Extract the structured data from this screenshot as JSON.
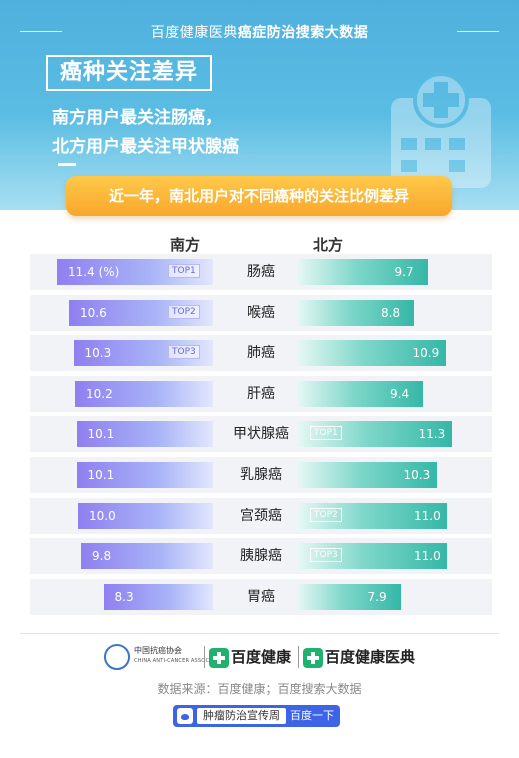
{
  "header": {
    "top_prefix": "百度健康医典",
    "top_bold": "癌症防治搜索大数据",
    "title": "癌种关注差异",
    "subtitle1": "南方用户最关注肠癌，",
    "subtitle2": "北方用户最关注甲状腺癌",
    "banner": "近一年，南北用户对不同癌种的关注比例差异"
  },
  "chart_data": {
    "type": "bar",
    "title": "近一年，南北用户对不同癌种的关注比例差异",
    "unit": "%",
    "categories": [
      "肠癌",
      "喉癌",
      "肺癌",
      "肝癌",
      "甲状腺癌",
      "乳腺癌",
      "宫颈癌",
      "胰腺癌",
      "胃癌"
    ],
    "series": [
      {
        "name": "南方",
        "color": "#8f7ff0",
        "values": [
          11.4,
          10.6,
          10.3,
          10.2,
          10.1,
          10.1,
          10.0,
          9.8,
          8.3
        ],
        "labels": [
          "11.4 (%)",
          "10.6",
          "10.3",
          "10.2",
          "10.1",
          "10.1",
          "10.0",
          "9.8",
          "8.3"
        ],
        "tops": [
          "TOP1",
          "TOP2",
          "TOP3",
          "",
          "",
          "",
          "",
          "",
          ""
        ]
      },
      {
        "name": "北方",
        "color": "#35b7a7",
        "values": [
          9.7,
          8.8,
          10.9,
          9.4,
          11.3,
          10.3,
          11.0,
          11.0,
          7.9
        ],
        "labels": [
          "9.7",
          "8.8",
          "10.9",
          "9.4",
          "11.3",
          "10.3",
          "11.0",
          "11.0",
          "7.9"
        ],
        "tops": [
          "",
          "",
          "",
          "",
          "TOP1",
          "",
          "TOP2",
          "TOP3",
          ""
        ]
      }
    ],
    "legend": "top",
    "grid": false
  },
  "footer": {
    "org_cn": "中国抗癌协会",
    "org_en": "CHINA ANTI-CANCER ASSOCIATION",
    "logo1": "百度健康",
    "logo2": "百度健康医典",
    "source": "数据来源：百度健康；百度搜索大数据",
    "campaign": "肿瘤防治宣传周",
    "campaign_suffix": "百度一下"
  },
  "colors": {
    "header": "#5bbde3",
    "banner": "#f8a72c",
    "south": "#8f7ff0",
    "north": "#35b7a7",
    "south_underline": "#7e7cf0",
    "north_underline": "#38b9a8"
  }
}
